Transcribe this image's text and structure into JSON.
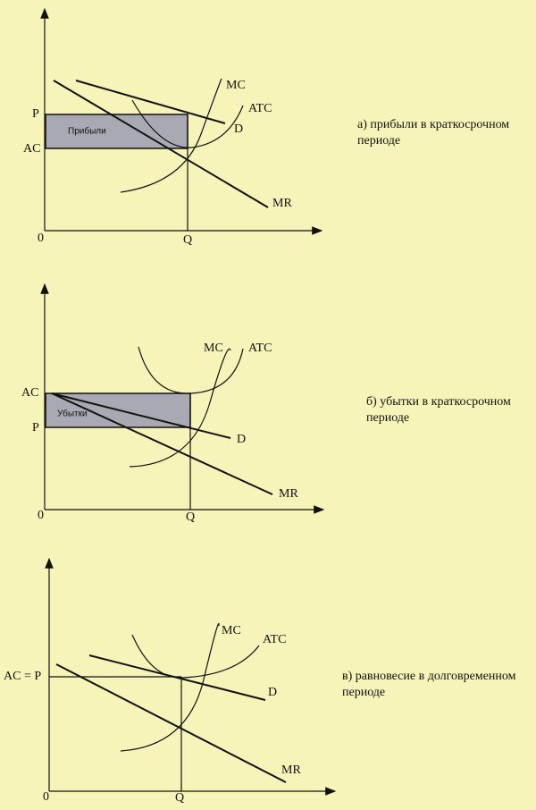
{
  "panels": [
    {
      "axis_labels": {
        "origin": "0",
        "x": "Q",
        "p": "P",
        "ac": "AC"
      },
      "curve_labels": {
        "mc": "MC",
        "atc": "ATC",
        "d": "D",
        "mr": "MR"
      },
      "area_label": "Прибыли",
      "caption": [
        "а) прибыли в краткосрочном",
        "периоде"
      ]
    },
    {
      "axis_labels": {
        "origin": "0",
        "x": "Q",
        "p": "P",
        "ac": "AC"
      },
      "curve_labels": {
        "mc": "MC",
        "atc": "ATC",
        "d": "D",
        "mr": "MR"
      },
      "area_label": "Убытки",
      "caption": [
        "б) убытки в краткосрочном",
        "периоде"
      ]
    },
    {
      "axis_labels": {
        "origin": "0",
        "x": "Q",
        "ac_p": "AC = P"
      },
      "curve_labels": {
        "mc": "MC",
        "atc": "ATC",
        "d": "D",
        "mr": "MR"
      },
      "caption": [
        "в) равновесие в долговременном",
        "периоде"
      ]
    }
  ]
}
